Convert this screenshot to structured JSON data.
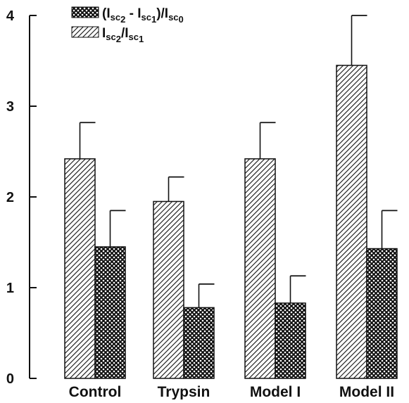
{
  "chart_data": {
    "type": "bar",
    "title": "",
    "xlabel": "",
    "ylabel": "",
    "ylim": [
      0,
      4
    ],
    "yticks": [
      "0",
      "1",
      "2",
      "3",
      "4"
    ],
    "categories": [
      "Control",
      "Trypsin",
      "Model I",
      "Model II"
    ],
    "series": [
      {
        "pattern": "diagonal-hatch",
        "values": [
          2.42,
          1.95,
          2.42,
          3.45
        ],
        "errors": [
          0.4,
          0.27,
          0.4,
          0.55
        ]
      },
      {
        "pattern": "crosshatch",
        "values": [
          1.45,
          0.78,
          0.83,
          1.43
        ],
        "errors": [
          0.4,
          0.26,
          0.3,
          0.42
        ]
      }
    ],
    "legend": {
      "position": "top-left",
      "entries": [
        {
          "pattern": "crosshatch",
          "parts": [
            {
              "t": "(I"
            },
            {
              "t": "sc",
              "sub": true
            },
            {
              "t": "2",
              "subsub": true
            },
            {
              "t": " - I"
            },
            {
              "t": "sc",
              "sub": true
            },
            {
              "t": "1",
              "subsub": true
            },
            {
              "t": ")/I"
            },
            {
              "t": "sc",
              "sub": true
            },
            {
              "t": "0",
              "subsub": true
            }
          ]
        },
        {
          "pattern": "diagonal-hatch",
          "parts": [
            {
              "t": "I"
            },
            {
              "t": "sc",
              "sub": true
            },
            {
              "t": "2",
              "subsub": true
            },
            {
              "t": "/I"
            },
            {
              "t": "sc",
              "sub": true
            },
            {
              "t": "1",
              "subsub": true
            }
          ]
        }
      ]
    },
    "colors": {
      "ink": "#111111",
      "background": "#ffffff"
    }
  }
}
